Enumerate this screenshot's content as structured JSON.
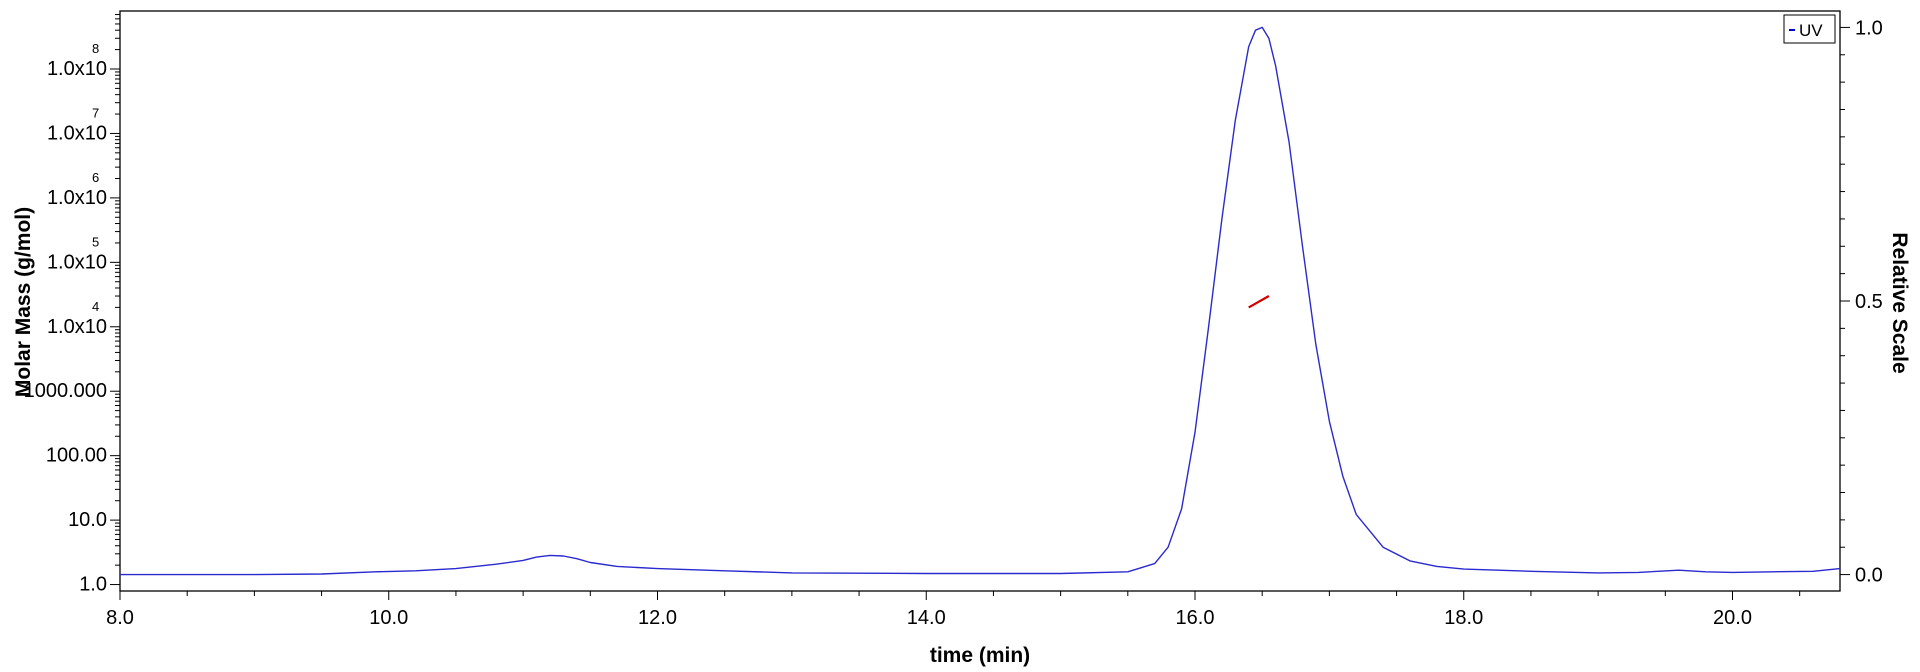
{
  "chart_data": {
    "type": "line",
    "title": "",
    "xlabel": "time (min)",
    "ylabel_left": "Molar Mass (g/mol)",
    "ylabel_right": "Relative Scale",
    "xlim": [
      8.0,
      20.8
    ],
    "x_ticks": [
      {
        "value": 8.0,
        "label": "8.0"
      },
      {
        "value": 10.0,
        "label": "10.0"
      },
      {
        "value": 12.0,
        "label": "12.0"
      },
      {
        "value": 14.0,
        "label": "14.0"
      },
      {
        "value": 16.0,
        "label": "16.0"
      },
      {
        "value": 18.0,
        "label": "18.0"
      },
      {
        "value": 20.0,
        "label": "20.0"
      }
    ],
    "y_left_scale": "log",
    "y_left_ticks": [
      {
        "exp": 0,
        "label": "1.0",
        "sup": ""
      },
      {
        "exp": 1,
        "label": "10.0",
        "sup": ""
      },
      {
        "exp": 2,
        "label": "100.00",
        "sup": ""
      },
      {
        "exp": 3,
        "label": "1000.000",
        "sup": ""
      },
      {
        "exp": 4,
        "label": "1.0x10",
        "sup": "4"
      },
      {
        "exp": 5,
        "label": "1.0x10",
        "sup": "5"
      },
      {
        "exp": 6,
        "label": "1.0x10",
        "sup": "6"
      },
      {
        "exp": 7,
        "label": "1.0x10",
        "sup": "7"
      },
      {
        "exp": 8,
        "label": "1.0x10",
        "sup": "8"
      }
    ],
    "y_left_range_exp": [
      -0.1,
      8.9
    ],
    "y_right_range": [
      -0.03,
      1.03
    ],
    "y_right_ticks": [
      {
        "value": 0.0,
        "label": "0.0"
      },
      {
        "value": 0.5,
        "label": "0.5"
      },
      {
        "value": 1.0,
        "label": "1.0"
      }
    ],
    "grid": false,
    "legend": {
      "position": "top-right",
      "entries": [
        {
          "label": "UV",
          "color": "#0000cc"
        }
      ]
    },
    "series": [
      {
        "name": "UV",
        "axis": "right",
        "color": "#2a2acf",
        "x": [
          8.0,
          9.0,
          9.5,
          9.9,
          10.2,
          10.5,
          10.8,
          11.0,
          11.1,
          11.2,
          11.3,
          11.4,
          11.5,
          11.7,
          12.0,
          12.5,
          13.0,
          14.0,
          15.0,
          15.5,
          15.7,
          15.8,
          15.9,
          16.0,
          16.1,
          16.2,
          16.3,
          16.4,
          16.45,
          16.5,
          16.55,
          16.6,
          16.7,
          16.8,
          16.9,
          17.0,
          17.1,
          17.2,
          17.4,
          17.6,
          17.8,
          18.0,
          18.5,
          19.0,
          19.3,
          19.6,
          19.8,
          20.0,
          20.3,
          20.6,
          20.8
        ],
        "y": [
          0.0,
          0.0,
          0.001,
          0.005,
          0.007,
          0.011,
          0.019,
          0.026,
          0.032,
          0.035,
          0.034,
          0.029,
          0.022,
          0.015,
          0.011,
          0.007,
          0.003,
          0.002,
          0.002,
          0.005,
          0.02,
          0.05,
          0.12,
          0.26,
          0.45,
          0.65,
          0.83,
          0.965,
          0.995,
          1.0,
          0.98,
          0.93,
          0.79,
          0.6,
          0.42,
          0.28,
          0.18,
          0.11,
          0.05,
          0.025,
          0.015,
          0.01,
          0.006,
          0.003,
          0.004,
          0.008,
          0.005,
          0.004,
          0.005,
          0.006,
          0.011
        ]
      },
      {
        "name": "Molar Mass",
        "axis": "left",
        "color": "#d40000",
        "x": [
          16.4,
          16.55
        ],
        "y": [
          20000,
          30000
        ]
      }
    ]
  }
}
